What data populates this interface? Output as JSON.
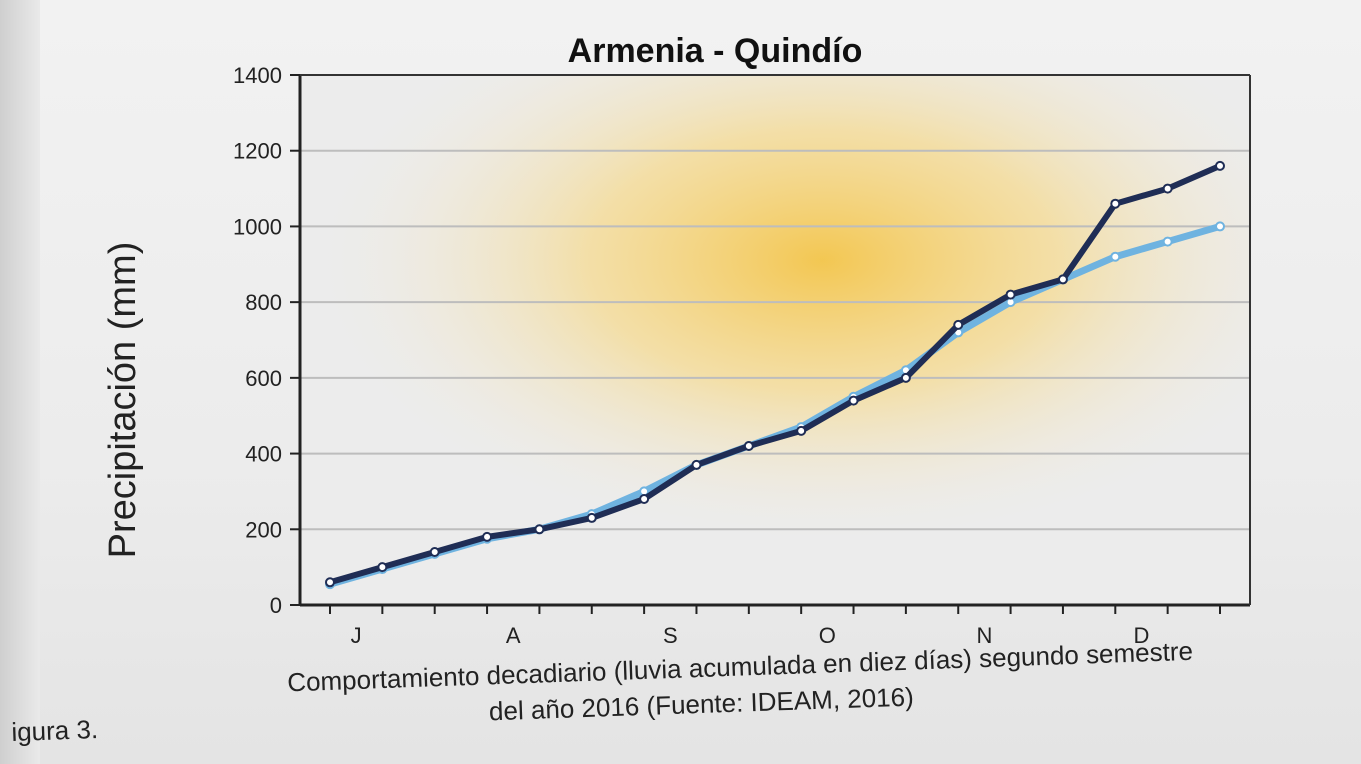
{
  "chart_data": {
    "type": "line",
    "title": "Armenia - Quindío",
    "ylabel": "Precipitación (mm)",
    "xlabel": "",
    "ylim": [
      0,
      1400
    ],
    "yticks": [
      0,
      200,
      400,
      600,
      800,
      1000,
      1200,
      1400
    ],
    "ytick_labels": [
      "0",
      "200",
      "400",
      "600",
      "800",
      "1000",
      "1200",
      "1400"
    ],
    "month_labels": [
      "J",
      "A",
      "S",
      "O",
      "N",
      "D"
    ],
    "grid": true,
    "series": [
      {
        "color": "#1f2d55",
        "values": [
          60,
          100,
          140,
          180,
          200,
          230,
          280,
          370,
          420,
          460,
          540,
          600,
          740,
          820,
          860,
          1060,
          1100,
          1160
        ]
      },
      {
        "color": "#6fb3e0",
        "values": [
          55,
          95,
          135,
          175,
          200,
          240,
          300,
          370,
          420,
          470,
          550,
          620,
          720,
          800,
          860,
          920,
          960,
          1000
        ]
      }
    ]
  },
  "caption": {
    "prefix": "igura 3.",
    "line1": "Comportamiento decadiario (lluvia acumulada en diez días) segundo semestre",
    "line2": "del año 2016 (Fuente: IDEAM, 2016)"
  }
}
